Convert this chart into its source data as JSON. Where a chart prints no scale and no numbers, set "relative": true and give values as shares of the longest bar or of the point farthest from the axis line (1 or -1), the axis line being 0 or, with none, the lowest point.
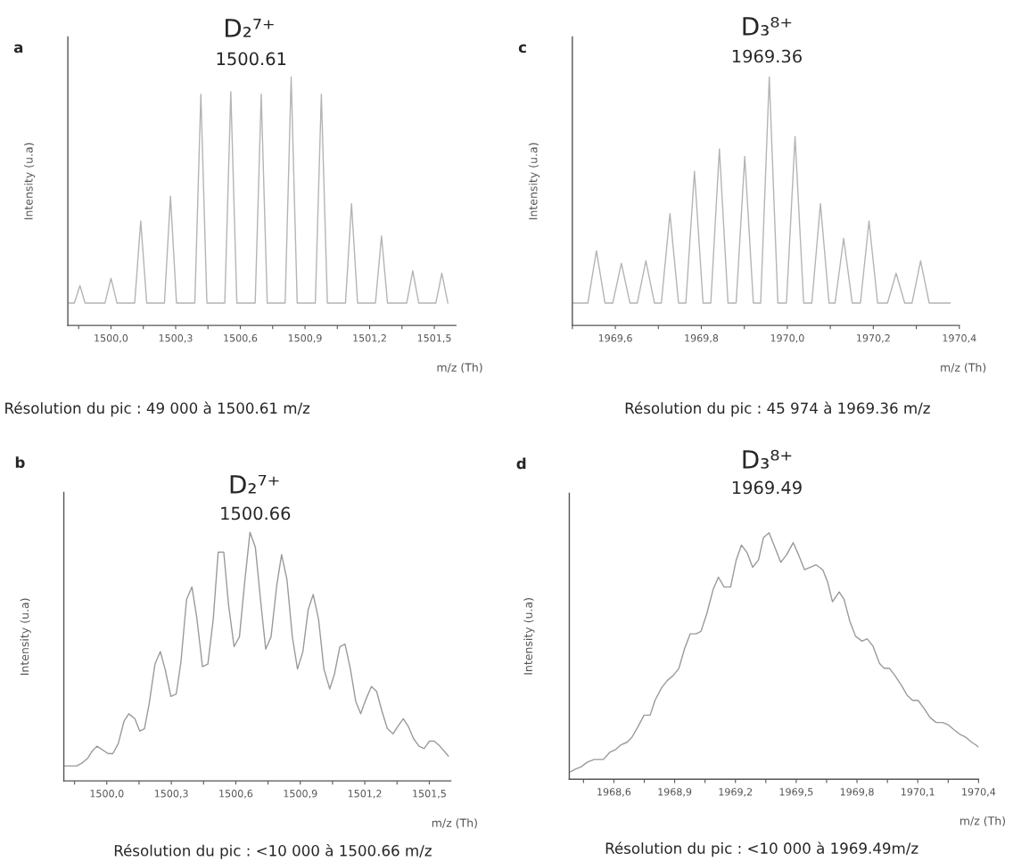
{
  "chart_data": [
    {
      "type": "line",
      "title": "D₂⁷⁺",
      "subtitle": "1500.61",
      "xlabel": "m/z (Th)",
      "ylabel": "Intensity (u.a)",
      "relative": true,
      "color": "#b4b4b4",
      "annotations": [
        "a",
        "Résolution du pic : 49 000 à 1500.61 m/z"
      ],
      "xlim": [
        1499.8,
        1501.6
      ],
      "xticks": [
        {
          "value": 1499.85,
          "label": null
        },
        {
          "value": 1500.0,
          "label": "1500,0"
        },
        {
          "value": 1500.15,
          "label": null
        },
        {
          "value": 1500.3,
          "label": "1500,3"
        },
        {
          "value": 1500.45,
          "label": null
        },
        {
          "value": 1500.6,
          "label": "1500,6"
        },
        {
          "value": 1500.75,
          "label": null
        },
        {
          "value": 1500.9,
          "label": "1500,9"
        },
        {
          "value": 1501.05,
          "label": null
        },
        {
          "value": 1501.2,
          "label": "1501,2"
        },
        {
          "value": 1501.35,
          "label": null
        },
        {
          "value": 1501.5,
          "label": "1501,5"
        }
      ],
      "x": [
        1499.805,
        1499.83,
        1499.856,
        1499.88,
        1499.972,
        1500.0,
        1500.028,
        1500.11,
        1500.138,
        1500.166,
        1500.248,
        1500.276,
        1500.304,
        1500.389,
        1500.417,
        1500.445,
        1500.528,
        1500.556,
        1500.584,
        1500.669,
        1500.697,
        1500.725,
        1500.808,
        1500.836,
        1500.864,
        1500.948,
        1500.976,
        1501.004,
        1501.088,
        1501.116,
        1501.144,
        1501.227,
        1501.255,
        1501.283,
        1501.372,
        1501.4,
        1501.428,
        1501.507,
        1501.535,
        1501.563
      ],
      "values": [
        0.09,
        0.09,
        0.16,
        0.09,
        0.09,
        0.19,
        0.09,
        0.09,
        0.42,
        0.09,
        0.09,
        0.52,
        0.09,
        0.09,
        0.93,
        0.09,
        0.09,
        0.94,
        0.09,
        0.09,
        0.93,
        0.09,
        0.09,
        1.0,
        0.09,
        0.09,
        0.93,
        0.09,
        0.09,
        0.49,
        0.09,
        0.09,
        0.36,
        0.09,
        0.09,
        0.22,
        0.09,
        0.09,
        0.21,
        0.09
      ]
    },
    {
      "type": "line",
      "title": "D₃⁸⁺",
      "subtitle": "1969.36",
      "xlabel": "m/z (Th)",
      "ylabel": "Intensity (u.a)",
      "relative": true,
      "color": "#b4b4b4",
      "annotations": [
        "c",
        "Résolution du pic : 45 974 à 1969.36 m/z"
      ],
      "xlim": [
        1969.5,
        1970.4
      ],
      "xticks": [
        {
          "value": 1969.5,
          "label": null
        },
        {
          "value": 1969.6,
          "label": "1969,6"
        },
        {
          "value": 1969.7,
          "label": null
        },
        {
          "value": 1969.8,
          "label": "1969,8"
        },
        {
          "value": 1969.9,
          "label": null
        },
        {
          "value": 1970.0,
          "label": "1970,0"
        },
        {
          "value": 1970.1,
          "label": null
        },
        {
          "value": 1970.2,
          "label": "1970,2"
        },
        {
          "value": 1970.3,
          "label": null
        },
        {
          "value": 1970.4,
          "label": "1970,4"
        }
      ],
      "x": [
        1969.501,
        1969.536,
        1969.556,
        1969.576,
        1969.594,
        1969.614,
        1969.634,
        1969.651,
        1969.671,
        1969.691,
        1969.707,
        1969.727,
        1969.747,
        1969.764,
        1969.784,
        1969.804,
        1969.822,
        1969.842,
        1969.862,
        1969.881,
        1969.901,
        1969.921,
        1969.938,
        1969.958,
        1969.978,
        1969.998,
        1970.018,
        1970.038,
        1970.057,
        1970.077,
        1970.097,
        1970.111,
        1970.131,
        1970.151,
        1970.17,
        1970.19,
        1970.21,
        1970.233,
        1970.253,
        1970.273,
        1970.29,
        1970.31,
        1970.33,
        1970.379
      ],
      "values": [
        0.09,
        0.09,
        0.3,
        0.09,
        0.09,
        0.25,
        0.09,
        0.09,
        0.26,
        0.09,
        0.09,
        0.45,
        0.09,
        0.09,
        0.62,
        0.09,
        0.09,
        0.71,
        0.09,
        0.09,
        0.68,
        0.09,
        0.09,
        1.0,
        0.09,
        0.09,
        0.76,
        0.09,
        0.09,
        0.49,
        0.09,
        0.09,
        0.35,
        0.09,
        0.09,
        0.42,
        0.09,
        0.09,
        0.21,
        0.09,
        0.09,
        0.26,
        0.09,
        0.09
      ]
    },
    {
      "type": "line",
      "title": "D₂⁷⁺",
      "subtitle": "1500.66",
      "xlabel": "m/z (Th)",
      "ylabel": "Intensity (u.a)",
      "relative": true,
      "color": "#9a9a9a",
      "annotations": [
        "b",
        "Résolution du pic : <10 000 à 1500.66 m/z"
      ],
      "xlim": [
        1499.8,
        1501.6
      ],
      "xticks": [
        {
          "value": 1499.85,
          "label": null
        },
        {
          "value": 1500.0,
          "label": "1500,0"
        },
        {
          "value": 1500.15,
          "label": null
        },
        {
          "value": 1500.3,
          "label": "1500,3"
        },
        {
          "value": 1500.45,
          "label": null
        },
        {
          "value": 1500.6,
          "label": "1500,6"
        },
        {
          "value": 1500.75,
          "label": null
        },
        {
          "value": 1500.9,
          "label": "1500,9"
        },
        {
          "value": 1501.05,
          "label": null
        },
        {
          "value": 1501.2,
          "label": "1501,2"
        },
        {
          "value": 1501.35,
          "label": null
        },
        {
          "value": 1501.5,
          "label": "1501,5"
        }
      ],
      "x": [
        1499.804,
        1499.859,
        1499.881,
        1499.91,
        1499.932,
        1499.954,
        1500.006,
        1500.028,
        1500.053,
        1500.08,
        1500.102,
        1500.131,
        1500.153,
        1500.175,
        1500.197,
        1500.224,
        1500.249,
        1500.271,
        1500.298,
        1500.323,
        1500.345,
        1500.371,
        1500.396,
        1500.418,
        1500.445,
        1500.47,
        1500.495,
        1500.518,
        1500.544,
        1500.566,
        1500.592,
        1500.617,
        1500.639,
        1500.666,
        1500.691,
        1500.716,
        1500.739,
        1500.764,
        1500.791,
        1500.813,
        1500.838,
        1500.863,
        1500.887,
        1500.912,
        1500.937,
        1500.96,
        1500.985,
        1501.01,
        1501.037,
        1501.059,
        1501.084,
        1501.108,
        1501.133,
        1501.158,
        1501.181,
        1501.206,
        1501.231,
        1501.255,
        1501.28,
        1501.305,
        1501.332,
        1501.354,
        1501.379,
        1501.402,
        1501.427,
        1501.452,
        1501.476,
        1501.501,
        1501.523,
        1501.549,
        1501.589
      ],
      "values": [
        0.06,
        0.06,
        0.07,
        0.09,
        0.12,
        0.14,
        0.11,
        0.11,
        0.15,
        0.24,
        0.27,
        0.25,
        0.2,
        0.21,
        0.31,
        0.47,
        0.52,
        0.45,
        0.34,
        0.35,
        0.48,
        0.73,
        0.78,
        0.66,
        0.46,
        0.47,
        0.65,
        0.92,
        0.92,
        0.71,
        0.54,
        0.58,
        0.78,
        1.0,
        0.94,
        0.72,
        0.53,
        0.58,
        0.79,
        0.91,
        0.81,
        0.58,
        0.45,
        0.52,
        0.69,
        0.75,
        0.65,
        0.45,
        0.37,
        0.43,
        0.54,
        0.55,
        0.45,
        0.32,
        0.27,
        0.33,
        0.38,
        0.36,
        0.28,
        0.21,
        0.19,
        0.22,
        0.25,
        0.22,
        0.17,
        0.14,
        0.13,
        0.16,
        0.16,
        0.14,
        0.1
      ]
    },
    {
      "type": "line",
      "title": "D₃⁸⁺",
      "subtitle": "1969.49",
      "xlabel": "m/z (Th)",
      "ylabel": "Intensity (u.a)",
      "relative": true,
      "color": "#9a9a9a",
      "annotations": [
        "d",
        "Résolution du pic : <10 000 à 1969.49m/z"
      ],
      "xlim": [
        1968.38,
        1970.4
      ],
      "xticks": [
        {
          "value": 1968.45,
          "label": null
        },
        {
          "value": 1968.6,
          "label": "1968,6"
        },
        {
          "value": 1968.75,
          "label": null
        },
        {
          "value": 1968.9,
          "label": "1968,9"
        },
        {
          "value": 1969.05,
          "label": null
        },
        {
          "value": 1969.2,
          "label": "1969,2"
        },
        {
          "value": 1969.35,
          "label": null
        },
        {
          "value": 1969.5,
          "label": "1969,5"
        },
        {
          "value": 1969.65,
          "label": null
        },
        {
          "value": 1969.8,
          "label": "1969,8"
        },
        {
          "value": 1969.95,
          "label": null
        },
        {
          "value": 1970.1,
          "label": "1970,1"
        },
        {
          "value": 1970.25,
          "label": null
        },
        {
          "value": 1970.4,
          "label": "1970,4"
        }
      ],
      "x": [
        1968.386,
        1968.408,
        1968.438,
        1968.47,
        1968.503,
        1968.548,
        1968.581,
        1968.608,
        1968.636,
        1968.665,
        1968.689,
        1968.717,
        1968.749,
        1968.779,
        1968.803,
        1968.835,
        1968.863,
        1968.892,
        1968.921,
        1968.949,
        1968.977,
        1969.006,
        1969.03,
        1969.058,
        1969.09,
        1969.116,
        1969.144,
        1969.176,
        1969.204,
        1969.23,
        1969.257,
        1969.285,
        1969.314,
        1969.338,
        1969.366,
        1969.395,
        1969.424,
        1969.452,
        1969.485,
        1969.512,
        1969.541,
        1969.57,
        1969.598,
        1969.631,
        1969.655,
        1969.679,
        1969.712,
        1969.736,
        1969.765,
        1969.793,
        1969.825,
        1969.85,
        1969.879,
        1969.911,
        1969.934,
        1969.96,
        1969.988,
        1970.02,
        1970.048,
        1970.074,
        1970.101,
        1970.129,
        1970.161,
        1970.191,
        1970.223,
        1970.252,
        1970.28,
        1970.312,
        1970.337,
        1970.366,
        1970.385,
        1970.4
      ],
      "values": [
        0.03,
        0.04,
        0.05,
        0.07,
        0.08,
        0.08,
        0.11,
        0.12,
        0.14,
        0.15,
        0.17,
        0.21,
        0.26,
        0.26,
        0.32,
        0.37,
        0.4,
        0.42,
        0.45,
        0.53,
        0.59,
        0.59,
        0.6,
        0.67,
        0.77,
        0.82,
        0.78,
        0.78,
        0.89,
        0.95,
        0.92,
        0.86,
        0.89,
        0.98,
        1.0,
        0.94,
        0.88,
        0.91,
        0.96,
        0.91,
        0.85,
        0.86,
        0.87,
        0.85,
        0.8,
        0.72,
        0.76,
        0.73,
        0.64,
        0.58,
        0.56,
        0.57,
        0.54,
        0.47,
        0.45,
        0.45,
        0.42,
        0.38,
        0.34,
        0.32,
        0.32,
        0.29,
        0.25,
        0.23,
        0.23,
        0.22,
        0.2,
        0.18,
        0.17,
        0.15,
        0.14,
        0.13
      ]
    }
  ]
}
